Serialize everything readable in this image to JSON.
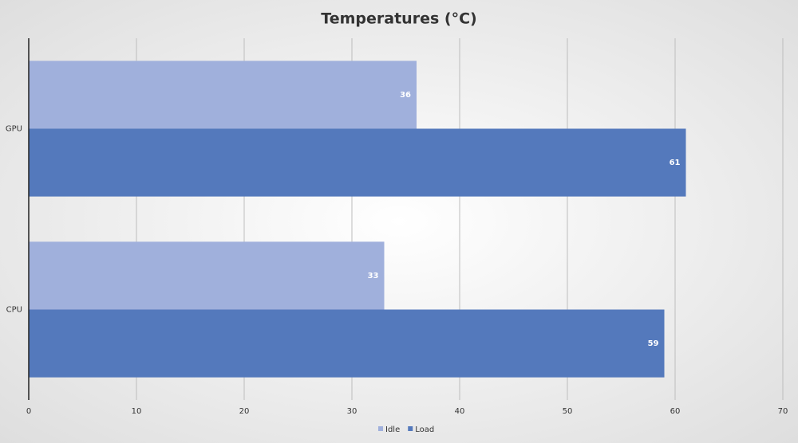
{
  "chart_data": {
    "type": "bar",
    "orientation": "horizontal",
    "title": "Temperatures (°C)",
    "categories": [
      "GPU",
      "CPU"
    ],
    "series": [
      {
        "name": "Idle",
        "color": "#a0b0dc",
        "values": [
          36,
          33
        ]
      },
      {
        "name": "Load",
        "color": "#5479bc",
        "values": [
          61,
          59
        ]
      }
    ],
    "xlim": [
      0,
      70
    ],
    "xticks": [
      0,
      10,
      20,
      30,
      40,
      50,
      60,
      70
    ],
    "grid": true,
    "legend": "bottom"
  }
}
